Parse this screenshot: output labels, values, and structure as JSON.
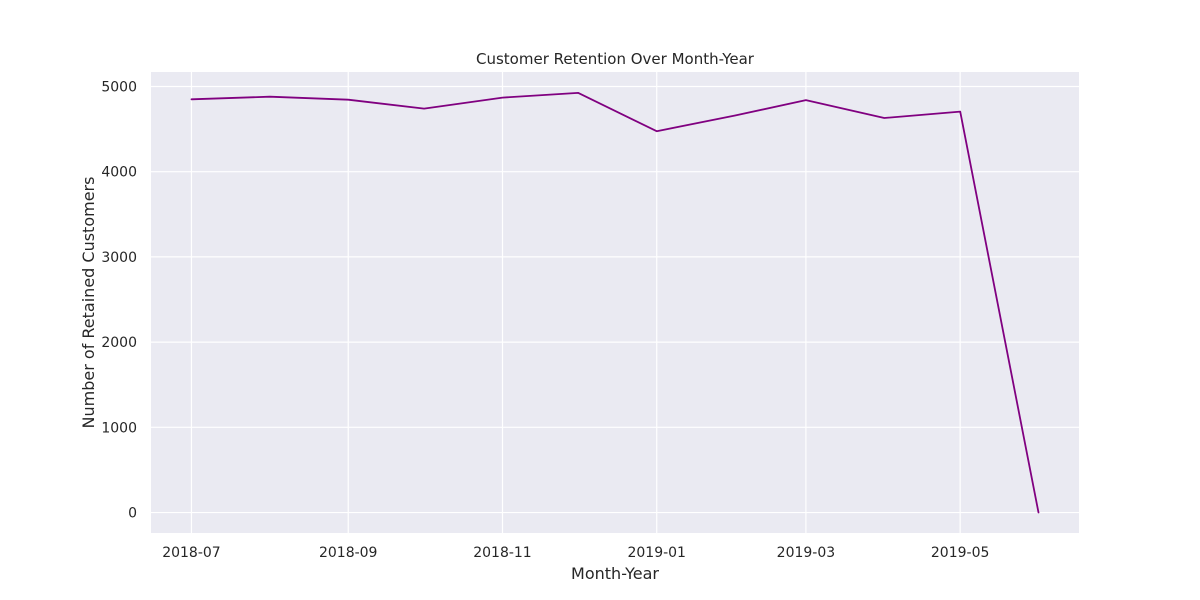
{
  "chart_data": {
    "type": "line",
    "title": "Customer Retention Over Month-Year",
    "xlabel": "Month-Year",
    "ylabel": "Number of Retained Customers",
    "x": [
      "2018-07",
      "2018-08",
      "2018-09",
      "2018-10",
      "2018-11",
      "2018-12",
      "2019-01",
      "2019-02",
      "2019-03",
      "2019-04",
      "2019-05",
      "2019-06"
    ],
    "xticks": [
      "2018-07",
      "2018-09",
      "2018-11",
      "2019-01",
      "2019-03",
      "2019-05"
    ],
    "yticks": [
      0,
      1000,
      2000,
      3000,
      4000,
      5000
    ],
    "ylim": [
      -240,
      5170
    ],
    "xlim": [
      "2018-06-15",
      "2019-06-17"
    ],
    "series": [
      {
        "values": [
          4850,
          4880,
          4845,
          4740,
          4870,
          4925,
          4475,
          4660,
          4840,
          4630,
          4705,
          0
        ]
      }
    ],
    "grid": true,
    "legend": "none",
    "colors": {
      "line": "#800080",
      "plot_background": "#eaeaf2",
      "grid": "#ffffff",
      "text": "#262626"
    }
  }
}
